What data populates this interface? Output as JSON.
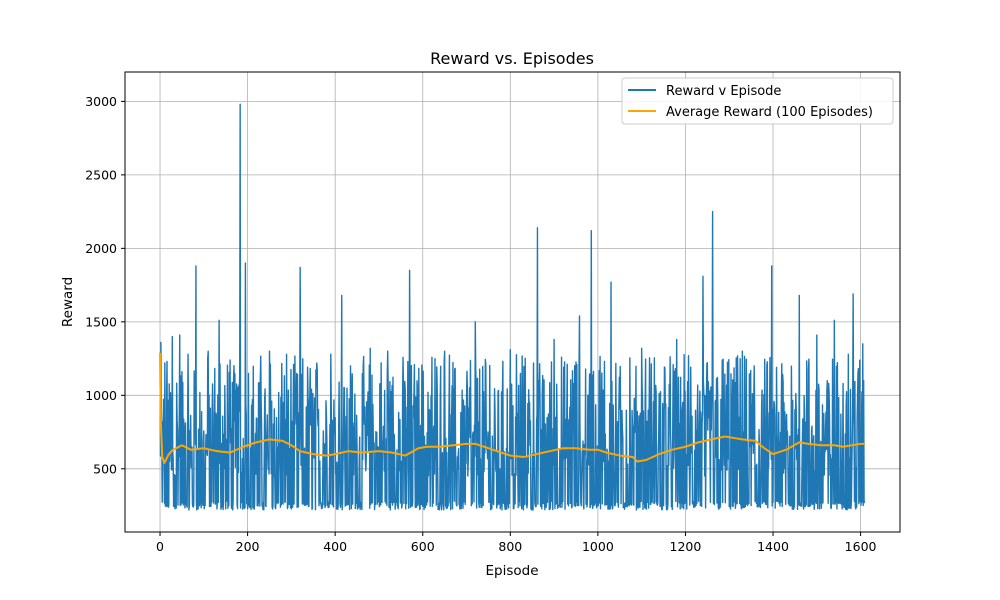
{
  "chart_data": {
    "type": "line",
    "title": "Reward vs. Episodes",
    "xlabel": "Episode",
    "ylabel": "Reward",
    "xlim": [
      -80,
      1690
    ],
    "ylim": [
      70,
      3200
    ],
    "xticks": [
      0,
      200,
      400,
      600,
      800,
      1000,
      1200,
      1400,
      1600
    ],
    "xtick_labels": [
      "0",
      "200",
      "400",
      "600",
      "800",
      "1000",
      "1200",
      "1400",
      "1600"
    ],
    "yticks": [
      500,
      1000,
      1500,
      2000,
      2500,
      3000
    ],
    "ytick_labels": [
      "500",
      "1000",
      "1500",
      "2000",
      "2500",
      "3000"
    ],
    "grid": true,
    "legend_position": "top-right",
    "series": [
      {
        "name": "Reward v Episode",
        "color": "#1f77b4",
        "approx_episode_count": 1610,
        "value_range": [
          220,
          2980
        ],
        "peaks": [
          {
            "x": 0,
            "y": 1290
          },
          {
            "x": 2,
            "y": 1360
          },
          {
            "x": 15,
            "y": 1020
          },
          {
            "x": 28,
            "y": 1400
          },
          {
            "x": 45,
            "y": 1410
          },
          {
            "x": 82,
            "y": 1880
          },
          {
            "x": 110,
            "y": 1300
          },
          {
            "x": 135,
            "y": 1510
          },
          {
            "x": 160,
            "y": 1240
          },
          {
            "x": 183,
            "y": 2980
          },
          {
            "x": 195,
            "y": 1900
          },
          {
            "x": 250,
            "y": 1300
          },
          {
            "x": 320,
            "y": 1870
          },
          {
            "x": 390,
            "y": 1280
          },
          {
            "x": 415,
            "y": 1680
          },
          {
            "x": 480,
            "y": 1320
          },
          {
            "x": 520,
            "y": 1300
          },
          {
            "x": 570,
            "y": 1850
          },
          {
            "x": 650,
            "y": 1300
          },
          {
            "x": 720,
            "y": 1500
          },
          {
            "x": 800,
            "y": 1310
          },
          {
            "x": 862,
            "y": 2140
          },
          {
            "x": 900,
            "y": 1380
          },
          {
            "x": 958,
            "y": 1540
          },
          {
            "x": 985,
            "y": 2120
          },
          {
            "x": 1030,
            "y": 1770
          },
          {
            "x": 1100,
            "y": 1320
          },
          {
            "x": 1180,
            "y": 1380
          },
          {
            "x": 1240,
            "y": 1810
          },
          {
            "x": 1262,
            "y": 2250
          },
          {
            "x": 1330,
            "y": 1300
          },
          {
            "x": 1397,
            "y": 1880
          },
          {
            "x": 1460,
            "y": 1680
          },
          {
            "x": 1500,
            "y": 1410
          },
          {
            "x": 1540,
            "y": 1510
          },
          {
            "x": 1583,
            "y": 1690
          },
          {
            "x": 1605,
            "y": 1350
          }
        ]
      },
      {
        "name": "Average Reward (100 Episodes)",
        "color": "#ffa500",
        "x": [
          0,
          2,
          5,
          10,
          20,
          30,
          50,
          70,
          100,
          130,
          160,
          190,
          220,
          250,
          280,
          300,
          320,
          350,
          380,
          400,
          430,
          460,
          500,
          530,
          560,
          590,
          610,
          640,
          670,
          700,
          720,
          750,
          780,
          800,
          830,
          860,
          890,
          920,
          950,
          980,
          1000,
          1020,
          1050,
          1080,
          1090,
          1110,
          1140,
          1170,
          1200,
          1230,
          1260,
          1290,
          1310,
          1330,
          1360,
          1380,
          1400,
          1430,
          1460,
          1480,
          1510,
          1540,
          1560,
          1580,
          1600,
          1610
        ],
        "y": [
          1290,
          800,
          580,
          540,
          600,
          630,
          660,
          630,
          640,
          620,
          610,
          650,
          680,
          700,
          690,
          660,
          620,
          600,
          590,
          600,
          620,
          610,
          620,
          610,
          590,
          640,
          650,
          650,
          660,
          670,
          670,
          640,
          610,
          590,
          580,
          600,
          620,
          640,
          640,
          630,
          630,
          610,
          590,
          580,
          550,
          560,
          600,
          630,
          650,
          680,
          700,
          720,
          710,
          700,
          690,
          640,
          600,
          630,
          680,
          670,
          660,
          660,
          650,
          660,
          670,
          670
        ]
      }
    ]
  }
}
